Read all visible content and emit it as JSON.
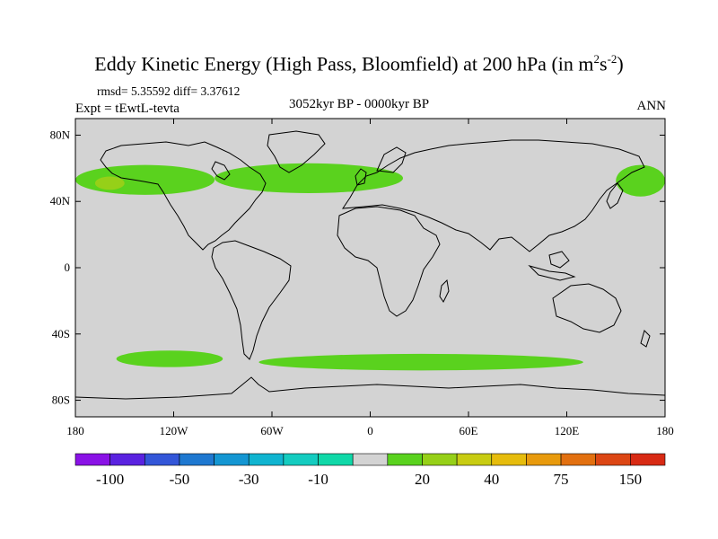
{
  "figure": {
    "title_main": "Eddy Kinetic Energy (High Pass, Bloomfield) at 200 hPa (in m",
    "title_sup1": "2",
    "title_mid": "s",
    "title_sup2": "-2",
    "title_end": ")",
    "stats": "rmsd= 5.35592 diff= 3.37612",
    "experiment": "Expt = tEwtL-tevta",
    "period": "3052kyr BP - 0000kyr BP",
    "season": "ANN"
  },
  "map": {
    "lon_range": [
      -180,
      180
    ],
    "lat_range": [
      -90,
      90
    ],
    "lat_ticks": [
      {
        "value": 80,
        "label": "80N"
      },
      {
        "value": 40,
        "label": "40N"
      },
      {
        "value": 0,
        "label": "0"
      },
      {
        "value": -40,
        "label": "40S"
      },
      {
        "value": -80,
        "label": "80S"
      }
    ],
    "lon_ticks": [
      {
        "value": -180,
        "label": "180"
      },
      {
        "value": -120,
        "label": "120W"
      },
      {
        "value": -60,
        "label": "60W"
      },
      {
        "value": 0,
        "label": "0"
      },
      {
        "value": 60,
        "label": "60E"
      },
      {
        "value": 120,
        "label": "120E"
      },
      {
        "value": 180,
        "label": "180"
      }
    ],
    "background_color": "#d3d3d3",
    "anomaly_regions": [
      {
        "name": "north-pacific-band",
        "level": "10-20",
        "lon": [
          -180,
          -95
        ],
        "lat": [
          44,
          62
        ]
      },
      {
        "name": "north-pacific-core",
        "level": "20-30",
        "lon": [
          -168,
          -150
        ],
        "lat": [
          47,
          55
        ]
      },
      {
        "name": "north-atlantic-band",
        "level": "10-20",
        "lon": [
          -95,
          20
        ],
        "lat": [
          45,
          63
        ]
      },
      {
        "name": "northwest-pacific-band",
        "level": "10-20",
        "lon": [
          150,
          180
        ],
        "lat": [
          43,
          62
        ]
      },
      {
        "name": "south-pacific-band",
        "level": "10-20",
        "lon": [
          -155,
          -90
        ],
        "lat": [
          -60,
          -50
        ]
      },
      {
        "name": "southern-ocean-band",
        "level": "10-20",
        "lon": [
          -68,
          130
        ],
        "lat": [
          -62,
          -52
        ]
      }
    ]
  },
  "colorbar": {
    "colors": [
      "#8a12e6",
      "#5a22e0",
      "#3356d8",
      "#1e78d0",
      "#1496d2",
      "#10b4d0",
      "#14ccc0",
      "#10d8a8",
      "#d3d3d3",
      "#5ad21e",
      "#96d018",
      "#c8cc12",
      "#e6bc0c",
      "#e89a0c",
      "#e27010",
      "#dc4614",
      "#d82a14"
    ],
    "labels": [
      {
        "boundary": 1,
        "label": "-100"
      },
      {
        "boundary": 3,
        "label": "-50"
      },
      {
        "boundary": 5,
        "label": "-30"
      },
      {
        "boundary": 7,
        "label": "-10"
      },
      {
        "boundary": 10,
        "label": "20"
      },
      {
        "boundary": 12,
        "label": "40"
      },
      {
        "boundary": 14,
        "label": "75"
      },
      {
        "boundary": 16,
        "label": "150"
      }
    ]
  }
}
